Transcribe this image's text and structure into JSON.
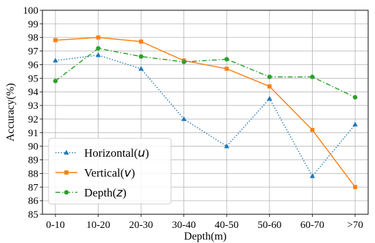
{
  "chart_data": {
    "type": "line",
    "title": "",
    "xlabel": "Depth(m)",
    "ylabel": "Accuracy(%)",
    "ylim": [
      85,
      100
    ],
    "yticks": [
      85,
      86,
      87,
      88,
      89,
      90,
      91,
      92,
      93,
      94,
      95,
      96,
      97,
      98,
      99,
      100
    ],
    "categories": [
      "0-10",
      "10-20",
      "20-30",
      "30-40",
      "40-50",
      "50-60",
      "60-70",
      ">70"
    ],
    "grid": true,
    "legend_position": "lower-left",
    "series": [
      {
        "name": "Horizontal(u)",
        "name_prefix": "Horizontal(",
        "name_var": "u",
        "name_suffix": ")",
        "color": "#1f77b4",
        "line_style": "dotted",
        "marker": "triangle-up",
        "values": [
          96.3,
          96.7,
          95.7,
          92.0,
          90.0,
          93.5,
          87.8,
          91.6
        ]
      },
      {
        "name": "Vertical(v)",
        "name_prefix": "Vertical(",
        "name_var": "v",
        "name_suffix": ")",
        "color": "#ff7f0e",
        "line_style": "solid",
        "marker": "square",
        "values": [
          97.8,
          98.0,
          97.7,
          96.3,
          95.7,
          94.4,
          91.2,
          87.0
        ]
      },
      {
        "name": "Depth(z)",
        "name_prefix": "Depth(",
        "name_var": "z",
        "name_suffix": ")",
        "color": "#2ca02c",
        "line_style": "dash-dot",
        "marker": "circle",
        "values": [
          94.8,
          97.2,
          96.6,
          96.2,
          96.4,
          95.1,
          95.1,
          93.6
        ]
      }
    ]
  }
}
